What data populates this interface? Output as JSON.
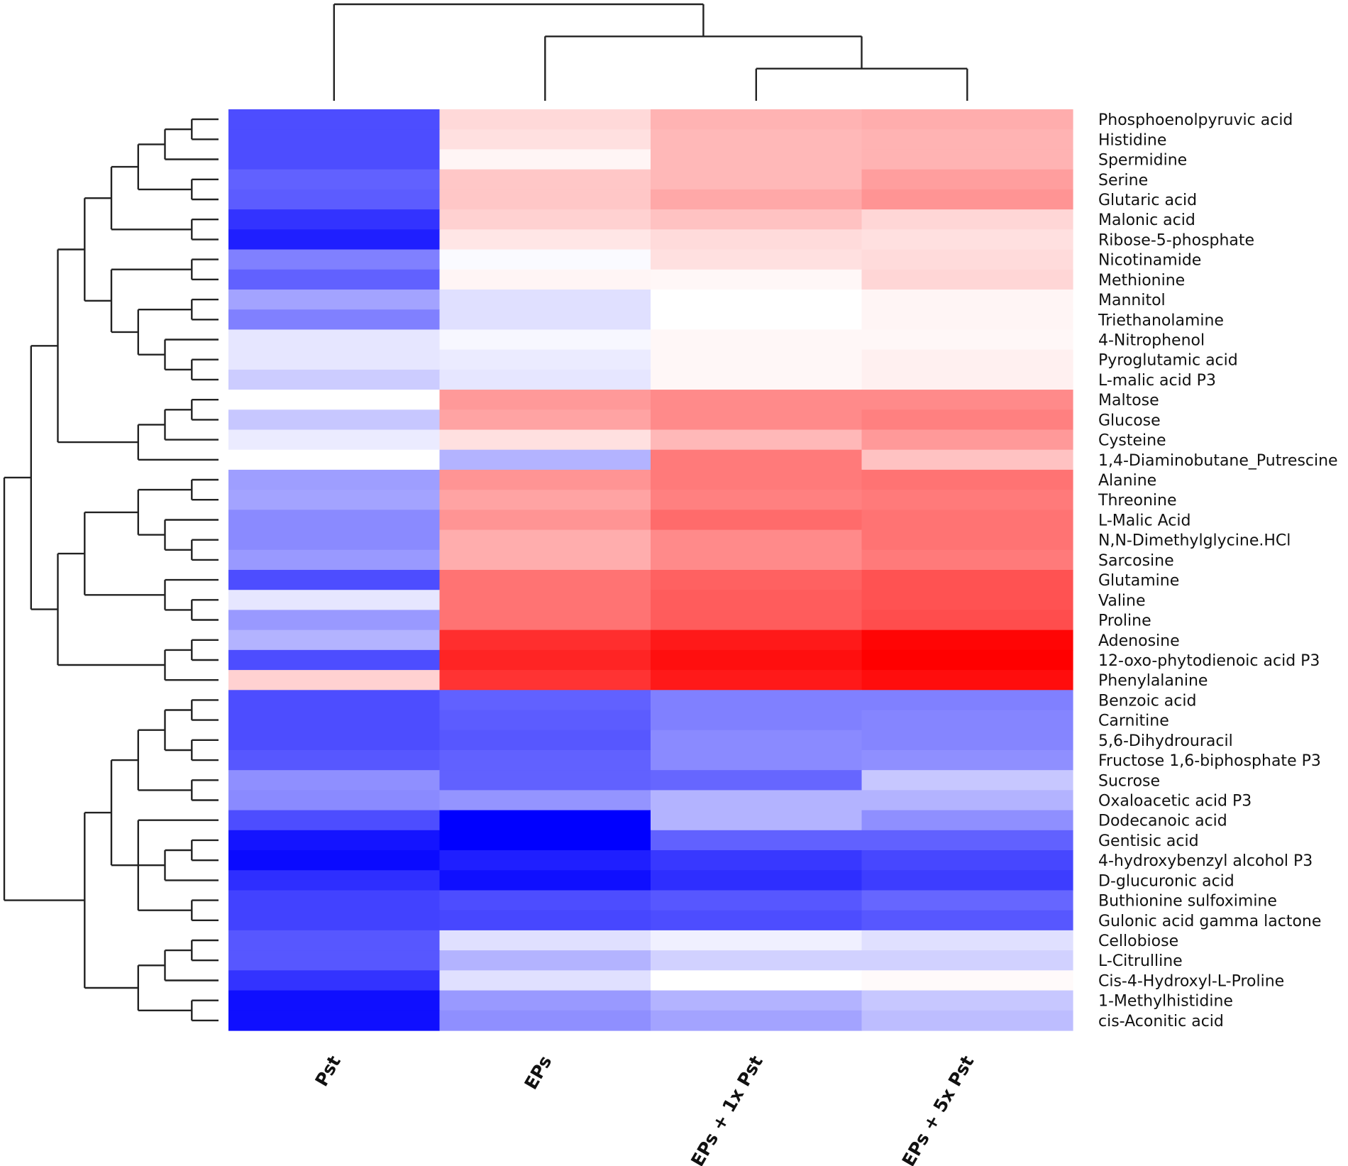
{
  "chart_data": {
    "type": "heatmap",
    "title": "",
    "color_scale": {
      "low": "#0000ff",
      "mid": "#ffffff",
      "high": "#ff0000",
      "range": [
        -1,
        1
      ]
    },
    "columns": [
      "Pst",
      "EPs",
      "EPs + 1x Pst",
      "EPs + 5x Pst"
    ],
    "rows": [
      {
        "name": "Phosphoenolpyruvic acid",
        "values": [
          -0.7,
          0.15,
          0.3,
          0.32
        ]
      },
      {
        "name": "Histidine",
        "values": [
          -0.7,
          0.12,
          0.28,
          0.3
        ]
      },
      {
        "name": "Spermidine",
        "values": [
          -0.7,
          0.04,
          0.28,
          0.3
        ]
      },
      {
        "name": "Serine",
        "values": [
          -0.62,
          0.22,
          0.28,
          0.38
        ]
      },
      {
        "name": "Glutaric acid",
        "values": [
          -0.64,
          0.22,
          0.34,
          0.42
        ]
      },
      {
        "name": "Malonic acid",
        "values": [
          -0.8,
          0.18,
          0.24,
          0.16
        ]
      },
      {
        "name": "Ribose-5-phosphate",
        "values": [
          -0.88,
          0.1,
          0.14,
          0.12
        ]
      },
      {
        "name": "Nicotinamide",
        "values": [
          -0.5,
          -0.02,
          0.12,
          0.14
        ]
      },
      {
        "name": "Methionine",
        "values": [
          -0.62,
          0.04,
          0.03,
          0.16
        ]
      },
      {
        "name": "Mannitol",
        "values": [
          -0.36,
          -0.12,
          0.0,
          0.04
        ]
      },
      {
        "name": "Triethanolamine",
        "values": [
          -0.5,
          -0.12,
          0.0,
          0.04
        ]
      },
      {
        "name": "4-Nitrophenol",
        "values": [
          -0.1,
          -0.03,
          0.03,
          0.03
        ]
      },
      {
        "name": "Pyroglutamic acid",
        "values": [
          -0.1,
          -0.08,
          0.03,
          0.06
        ]
      },
      {
        "name": "L-malic acid P3",
        "values": [
          -0.2,
          -0.1,
          0.03,
          0.06
        ]
      },
      {
        "name": "Maltose",
        "values": [
          0.0,
          0.4,
          0.46,
          0.46
        ]
      },
      {
        "name": "Glucose",
        "values": [
          -0.22,
          0.36,
          0.46,
          0.5
        ]
      },
      {
        "name": "Cysteine",
        "values": [
          -0.08,
          0.12,
          0.28,
          0.4
        ]
      },
      {
        "name": "1,4-Diaminobutane_Putrescine",
        "values": [
          0.0,
          -0.3,
          0.52,
          0.24
        ]
      },
      {
        "name": "Alanine",
        "values": [
          -0.38,
          0.42,
          0.52,
          0.55
        ]
      },
      {
        "name": "Threonine",
        "values": [
          -0.36,
          0.36,
          0.5,
          0.52
        ]
      },
      {
        "name": "L-Malic Acid",
        "values": [
          -0.46,
          0.42,
          0.58,
          0.55
        ]
      },
      {
        "name": "N,N-Dimethylglycine.HCl",
        "values": [
          -0.46,
          0.32,
          0.46,
          0.55
        ]
      },
      {
        "name": "Sarcosine",
        "values": [
          -0.4,
          0.32,
          0.46,
          0.52
        ]
      },
      {
        "name": "Glutamine",
        "values": [
          -0.7,
          0.55,
          0.62,
          0.68
        ]
      },
      {
        "name": "Valine",
        "values": [
          -0.1,
          0.55,
          0.64,
          0.68
        ]
      },
      {
        "name": "Proline",
        "values": [
          -0.4,
          0.55,
          0.64,
          0.7
        ]
      },
      {
        "name": "Adenosine",
        "values": [
          -0.3,
          0.82,
          0.9,
          0.98
        ]
      },
      {
        "name": "12-oxo-phytodienoic acid P3",
        "values": [
          -0.7,
          0.86,
          0.94,
          1.0
        ]
      },
      {
        "name": "Phenylalanine",
        "values": [
          0.18,
          0.8,
          0.9,
          0.95
        ]
      },
      {
        "name": "Benzoic acid",
        "values": [
          -0.7,
          -0.62,
          -0.5,
          -0.5
        ]
      },
      {
        "name": "Carnitine",
        "values": [
          -0.7,
          -0.64,
          -0.5,
          -0.48
        ]
      },
      {
        "name": "5,6-Dihydrouracil",
        "values": [
          -0.7,
          -0.66,
          -0.46,
          -0.48
        ]
      },
      {
        "name": "Fructose 1,6-biphosphate P3",
        "values": [
          -0.66,
          -0.62,
          -0.46,
          -0.44
        ]
      },
      {
        "name": "Sucrose",
        "values": [
          -0.44,
          -0.62,
          -0.6,
          -0.22
        ]
      },
      {
        "name": "Oxaloacetic acid P3",
        "values": [
          -0.46,
          -0.42,
          -0.3,
          -0.3
        ]
      },
      {
        "name": "Dodecanoic acid",
        "values": [
          -0.7,
          -1.0,
          -0.3,
          -0.44
        ]
      },
      {
        "name": "Gentisic acid",
        "values": [
          -0.92,
          -1.0,
          -0.62,
          -0.62
        ]
      },
      {
        "name": "4-hydroxybenzyl alcohol P3",
        "values": [
          -0.96,
          -0.88,
          -0.78,
          -0.72
        ]
      },
      {
        "name": "D-glucuronic acid",
        "values": [
          -0.82,
          -0.94,
          -0.82,
          -0.76
        ]
      },
      {
        "name": "Buthionine sulfoximine",
        "values": [
          -0.74,
          -0.7,
          -0.66,
          -0.6
        ]
      },
      {
        "name": "Gulonic acid gamma lactone",
        "values": [
          -0.74,
          -0.72,
          -0.7,
          -0.66
        ]
      },
      {
        "name": "Cellobiose",
        "values": [
          -0.66,
          -0.12,
          -0.06,
          -0.12
        ]
      },
      {
        "name": "L-Citrulline",
        "values": [
          -0.66,
          -0.3,
          -0.18,
          -0.18
        ]
      },
      {
        "name": "Cis-4-Hydroxyl-L-Proline",
        "values": [
          -0.8,
          -0.12,
          0.0,
          0.02
        ]
      },
      {
        "name": "1-Methylhistidine",
        "values": [
          -0.94,
          -0.4,
          -0.3,
          -0.22
        ]
      },
      {
        "name": "cis-Aconitic acid",
        "values": [
          -0.94,
          -0.44,
          -0.36,
          -0.26
        ]
      }
    ],
    "col_dendrogram": [
      "Pst",
      [
        "EPs",
        [
          "EPs + 1x Pst",
          "EPs + 5x Pst"
        ]
      ]
    ],
    "row_dendrogram": [
      [
        [
          [
            [
              [
                [
                  [
                    0,
                    1
                  ],
                  2
                ],
                [
                  3,
                  4
                ]
              ],
              [
                5,
                6
              ]
            ],
            [
              [
                7,
                8
              ],
              [
                [
                  9,
                  10
                ],
                [
                  11,
                  [
                    12,
                    13
                  ]
                ]
              ]
            ]
          ],
          [
            [
              [
                14,
                15
              ],
              16
            ],
            17
          ]
        ],
        [
          [
            [
              [
                [
                  18,
                  19
                ],
                [
                  20,
                  [
                    21,
                    22
                  ]
                ]
              ]
            ],
            [
              23,
              [
                24,
                25
              ]
            ]
          ],
          [
            [
              26,
              27
            ],
            28
          ]
        ]
      ],
      [
        [
          [
            [
              [
                29,
                30
              ],
              [
                31,
                32
              ]
            ],
            [
              33,
              34
            ]
          ],
          [
            35,
            [
              [
                36,
                37
              ],
              38
            ],
            [
              39,
              40
            ]
          ]
        ],
        [
          [
            [
              41,
              42
            ],
            43
          ],
          [
            44,
            45
          ]
        ]
      ]
    ],
    "legend": "none"
  }
}
